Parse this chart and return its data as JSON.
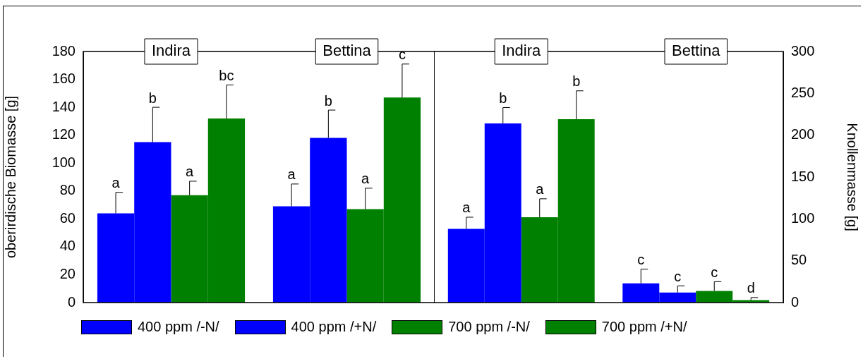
{
  "chart_data": [
    {
      "type": "bar",
      "ylabel": "oberirdische Biomasse [g]",
      "categories": [
        "Indira",
        "Bettina"
      ],
      "ylim": [
        0,
        180
      ],
      "yticks": [
        0,
        20,
        40,
        60,
        80,
        100,
        120,
        140,
        160,
        180
      ],
      "legend": "bottom",
      "grid": false,
      "series": [
        {
          "name": "400 ppm /-N/",
          "color": "#0000ff",
          "values": [
            64,
            69
          ],
          "errors": [
            [
              64,
              79
            ],
            [
              69,
              85
            ]
          ],
          "value_labels": [
            "a",
            "a"
          ]
        },
        {
          "name": "400 ppm /+N/",
          "color": "#0000ff",
          "values": [
            115,
            118
          ],
          "errors": [
            [
              115,
              140
            ],
            [
              118,
              138
            ]
          ],
          "value_labels": [
            "b",
            "b"
          ]
        },
        {
          "name": "700 ppm /-N/",
          "color": "#008000",
          "values": [
            77,
            67
          ],
          "errors": [
            [
              77,
              87
            ],
            [
              67,
              82
            ]
          ],
          "value_labels": [
            "a",
            "a"
          ]
        },
        {
          "name": "700 ppm /+N/",
          "color": "#008000",
          "values": [
            132,
            147
          ],
          "errors": [
            [
              132,
              156
            ],
            [
              147,
              171
            ]
          ],
          "value_labels": [
            "bc",
            "c"
          ]
        }
      ]
    },
    {
      "type": "bar",
      "y2label": "Knollenmasse [g]",
      "categories": [
        "Indira",
        "Bettina"
      ],
      "y2lim": [
        0,
        300
      ],
      "y2ticks": [
        0,
        50,
        100,
        150,
        200,
        250,
        300
      ],
      "grid": false,
      "series": [
        {
          "color": "#0000ff",
          "axis": "y2",
          "values": [
            88,
            23
          ],
          "errors": [
            [
              88,
              102
            ],
            [
              23,
              40
            ]
          ],
          "value_labels": [
            "a",
            "c"
          ]
        },
        {
          "color": "#0000ff",
          "axis": "y2",
          "values": [
            214,
            12
          ],
          "errors": [
            [
              214,
              233
            ],
            [
              12,
              20
            ]
          ],
          "value_labels": [
            "b",
            "c"
          ]
        },
        {
          "color": "#008000",
          "axis": "y2",
          "values": [
            102,
            14
          ],
          "errors": [
            [
              102,
              124
            ],
            [
              14,
              25
            ]
          ],
          "value_labels": [
            "a",
            "c"
          ]
        },
        {
          "color": "#008000",
          "axis": "y2",
          "values": [
            219,
            3
          ],
          "errors": [
            [
              219,
              253
            ],
            [
              3,
              6
            ]
          ],
          "value_labels": [
            "b",
            "d"
          ]
        }
      ]
    }
  ]
}
